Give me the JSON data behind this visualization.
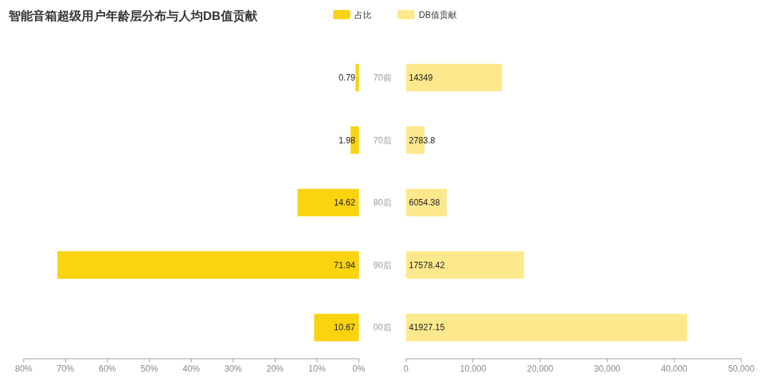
{
  "chart_data": [
    {
      "type": "bar",
      "title": "智能音箱超级用户年龄层分布与人均DB值贡献",
      "orientation": "horizontal",
      "legend": "top",
      "data_labels": true,
      "categories": [
        "70前",
        "70后",
        "80后",
        "90后",
        "00后"
      ],
      "series": [
        {
          "name": "占比",
          "color": "#fbd30f",
          "values": [
            0.79,
            1.98,
            14.62,
            71.94,
            10.67
          ]
        }
      ],
      "xlim": [
        80,
        0
      ],
      "xticks": [
        {
          "value": 80,
          "label": "80%"
        },
        {
          "value": 70,
          "label": "70%"
        },
        {
          "value": 60,
          "label": "60%"
        },
        {
          "value": 50,
          "label": "50%"
        },
        {
          "value": 40,
          "label": "40%"
        },
        {
          "value": 30,
          "label": "30%"
        },
        {
          "value": 20,
          "label": "20%"
        },
        {
          "value": 10,
          "label": "10%"
        },
        {
          "value": 0,
          "label": "0%"
        }
      ]
    },
    {
      "type": "bar",
      "orientation": "horizontal",
      "legend": "top",
      "data_labels": true,
      "categories": [
        null,
        null,
        null,
        null,
        null
      ],
      "series": [
        {
          "name": "DB值贡献",
          "color": "#fde98d",
          "values": [
            14349,
            2783.8,
            6054.38,
            17578.42,
            41927.15
          ]
        }
      ],
      "xlim": [
        0,
        50000
      ],
      "xticks": [
        0,
        {
          "value": 10000,
          "label": "10,000"
        },
        {
          "value": 20000,
          "label": "20,000"
        },
        {
          "value": 30000,
          "label": "30,000"
        },
        {
          "value": 40000,
          "label": "40,000"
        },
        {
          "value": 50000,
          "label": "50,000"
        }
      ]
    }
  ]
}
